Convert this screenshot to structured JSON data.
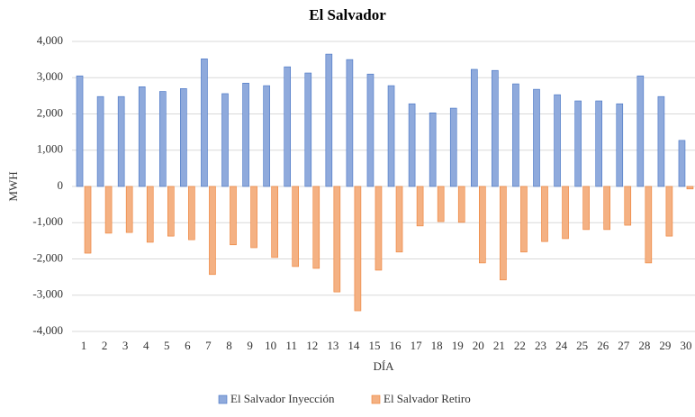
{
  "chart_data": {
    "type": "bar",
    "title": "El Salvador",
    "x_label": "DÍA",
    "y_label": "MWH",
    "categories": [
      "1",
      "2",
      "3",
      "4",
      "5",
      "6",
      "7",
      "8",
      "9",
      "10",
      "11",
      "12",
      "13",
      "14",
      "15",
      "16",
      "17",
      "18",
      "19",
      "20",
      "21",
      "22",
      "23",
      "24",
      "25",
      "26",
      "27",
      "28",
      "29",
      "30"
    ],
    "series": [
      {
        "name": "El Salvador Inyección",
        "color": "#8faadc",
        "values": [
          3050,
          2480,
          2480,
          2750,
          2620,
          2700,
          3520,
          2560,
          2850,
          2780,
          3300,
          3130,
          3650,
          3500,
          3100,
          2780,
          2280,
          2030,
          2160,
          3230,
          3200,
          2830,
          2680,
          2530,
          2360,
          2360,
          2280,
          3050,
          2480,
          1270
        ]
      },
      {
        "name": "El Salvador Retiro",
        "color": "#f4b183",
        "values": [
          -1840,
          -1290,
          -1270,
          -1540,
          -1370,
          -1470,
          -2430,
          -1610,
          -1690,
          -1960,
          -2210,
          -2260,
          -2910,
          -3430,
          -2310,
          -1810,
          -1090,
          -970,
          -990,
          -2110,
          -2580,
          -1810,
          -1520,
          -1440,
          -1190,
          -1190,
          -1070,
          -2110,
          -1370,
          -70
        ]
      }
    ],
    "ylim": [
      -4000,
      4000
    ],
    "yticks": [
      {
        "value": -4000,
        "label": "-4,000"
      },
      {
        "value": -3000,
        "label": "-3,000"
      },
      {
        "value": -2000,
        "label": "-2,000"
      },
      {
        "value": -1000,
        "label": "-1,000"
      },
      0,
      {
        "value": 1000,
        "label": "1,000"
      },
      {
        "value": 2000,
        "label": "2,000"
      },
      {
        "value": 3000,
        "label": "3,000"
      },
      {
        "value": 4000,
        "label": "4,000"
      }
    ],
    "grid": true
  }
}
